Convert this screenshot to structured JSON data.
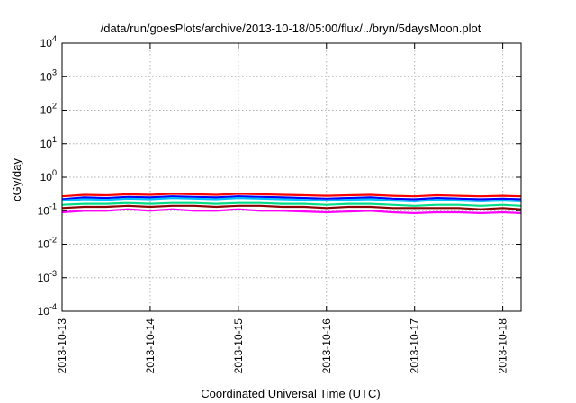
{
  "chart_data": {
    "type": "line",
    "title": "/data/run/goesPlots/archive/2013-10-18/05:00/flux/../bryn/5daysMoon.plot",
    "xlabel": "Coordinated Universal Time (UTC)",
    "ylabel": "cGy/day",
    "yscale": "log",
    "ylim": [
      0.0001,
      10000
    ],
    "xlim": [
      "2013-10-13",
      "2013-10-18 05:00"
    ],
    "x_ticks": [
      "2013-10-13",
      "2013-10-14",
      "2013-10-15",
      "2013-10-16",
      "2013-10-17",
      "2013-10-18"
    ],
    "y_ticks": [
      {
        "base": "10",
        "exp": "-4",
        "value": 0.0001
      },
      {
        "base": "10",
        "exp": "-3",
        "value": 0.001
      },
      {
        "base": "10",
        "exp": "-2",
        "value": 0.01
      },
      {
        "base": "10",
        "exp": "-1",
        "value": 0.1
      },
      {
        "base": "10",
        "exp": "0",
        "value": 1
      },
      {
        "base": "10",
        "exp": "1",
        "value": 10
      },
      {
        "base": "10",
        "exp": "2",
        "value": 100
      },
      {
        "base": "10",
        "exp": "3",
        "value": 1000
      },
      {
        "base": "10",
        "exp": "4",
        "value": 10000
      }
    ],
    "grid": true,
    "x": [
      "2013-10-13 00:00",
      "2013-10-13 06:00",
      "2013-10-13 12:00",
      "2013-10-13 18:00",
      "2013-10-14 00:00",
      "2013-10-14 06:00",
      "2013-10-14 12:00",
      "2013-10-14 18:00",
      "2013-10-15 00:00",
      "2013-10-15 06:00",
      "2013-10-15 12:00",
      "2013-10-15 18:00",
      "2013-10-16 00:00",
      "2013-10-16 06:00",
      "2013-10-16 12:00",
      "2013-10-16 18:00",
      "2013-10-17 00:00",
      "2013-10-17 06:00",
      "2013-10-17 12:00",
      "2013-10-17 18:00",
      "2013-10-18 00:00",
      "2013-10-18 05:00"
    ],
    "series": [
      {
        "color": "#ff0000",
        "values": [
          0.27,
          0.3,
          0.29,
          0.31,
          0.3,
          0.32,
          0.31,
          0.3,
          0.32,
          0.31,
          0.3,
          0.29,
          0.28,
          0.29,
          0.3,
          0.28,
          0.27,
          0.29,
          0.28,
          0.27,
          0.28,
          0.27
        ]
      },
      {
        "color": "#0000ff",
        "values": [
          0.22,
          0.25,
          0.24,
          0.26,
          0.25,
          0.27,
          0.26,
          0.25,
          0.27,
          0.26,
          0.25,
          0.24,
          0.23,
          0.24,
          0.25,
          0.23,
          0.22,
          0.24,
          0.23,
          0.22,
          0.23,
          0.22
        ]
      },
      {
        "color": "#00bfff",
        "values": [
          0.2,
          0.22,
          0.21,
          0.23,
          0.22,
          0.24,
          0.23,
          0.22,
          0.24,
          0.23,
          0.22,
          0.21,
          0.2,
          0.21,
          0.22,
          0.2,
          0.19,
          0.21,
          0.2,
          0.19,
          0.2,
          0.19
        ]
      },
      {
        "color": "#00dd88",
        "values": [
          0.15,
          0.16,
          0.16,
          0.17,
          0.16,
          0.17,
          0.17,
          0.16,
          0.17,
          0.17,
          0.16,
          0.16,
          0.15,
          0.16,
          0.16,
          0.15,
          0.14,
          0.15,
          0.15,
          0.14,
          0.15,
          0.14
        ]
      },
      {
        "color": "#8b0000",
        "values": [
          0.12,
          0.13,
          0.13,
          0.14,
          0.13,
          0.14,
          0.14,
          0.13,
          0.14,
          0.14,
          0.13,
          0.13,
          0.12,
          0.13,
          0.13,
          0.12,
          0.12,
          0.12,
          0.12,
          0.11,
          0.12,
          0.11
        ]
      },
      {
        "color": "#ff00ff",
        "values": [
          0.09,
          0.1,
          0.1,
          0.11,
          0.1,
          0.11,
          0.1,
          0.1,
          0.11,
          0.1,
          0.1,
          0.095,
          0.09,
          0.095,
          0.1,
          0.09,
          0.085,
          0.09,
          0.09,
          0.085,
          0.09,
          0.085
        ]
      }
    ]
  }
}
